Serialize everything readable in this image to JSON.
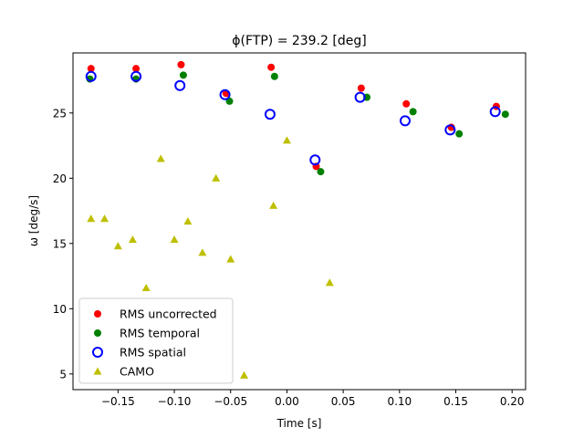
{
  "chart_data": {
    "type": "scatter",
    "title": "ϕ(FTP) = 239.2 [deg]",
    "xlabel": "Time [s]",
    "ylabel": "ω [deg/s]",
    "xlim": [
      -0.19,
      0.212
    ],
    "ylim": [
      3.8,
      29.6
    ],
    "xticks": [
      -0.15,
      -0.1,
      -0.05,
      0.0,
      0.05,
      0.1,
      0.15,
      0.2
    ],
    "xtick_labels": [
      "−0.15",
      "−0.10",
      "−0.05",
      "0.00",
      "0.05",
      "0.10",
      "0.15",
      "0.20"
    ],
    "yticks": [
      5,
      10,
      15,
      20,
      25
    ],
    "ytick_labels": [
      "5",
      "10",
      "15",
      "20",
      "25"
    ],
    "grid": false,
    "legend_position": "lower-left",
    "series": [
      {
        "name": "RMS uncorrected",
        "marker": "filled-circle",
        "color": "#ff0000",
        "points": [
          {
            "x": -0.174,
            "y": 28.4
          },
          {
            "x": -0.134,
            "y": 28.4
          },
          {
            "x": -0.094,
            "y": 28.7
          },
          {
            "x": -0.054,
            "y": 26.5
          },
          {
            "x": -0.014,
            "y": 28.5
          },
          {
            "x": 0.026,
            "y": 20.9
          },
          {
            "x": 0.066,
            "y": 26.9
          },
          {
            "x": 0.106,
            "y": 25.7
          },
          {
            "x": 0.146,
            "y": 23.9
          },
          {
            "x": 0.186,
            "y": 25.5
          }
        ]
      },
      {
        "name": "RMS temporal",
        "marker": "filled-circle",
        "color": "#008000",
        "points": [
          {
            "x": -0.175,
            "y": 27.6
          },
          {
            "x": -0.134,
            "y": 27.6
          },
          {
            "x": -0.092,
            "y": 27.9
          },
          {
            "x": -0.051,
            "y": 25.9
          },
          {
            "x": -0.011,
            "y": 27.8
          },
          {
            "x": 0.03,
            "y": 20.5
          },
          {
            "x": 0.071,
            "y": 26.2
          },
          {
            "x": 0.112,
            "y": 25.1
          },
          {
            "x": 0.153,
            "y": 23.4
          },
          {
            "x": 0.194,
            "y": 24.9
          }
        ]
      },
      {
        "name": "RMS spatial",
        "marker": "open-circle",
        "color": "#0000ff",
        "points": [
          {
            "x": -0.174,
            "y": 27.8
          },
          {
            "x": -0.134,
            "y": 27.8
          },
          {
            "x": -0.095,
            "y": 27.1
          },
          {
            "x": -0.055,
            "y": 26.4
          },
          {
            "x": -0.015,
            "y": 24.9
          },
          {
            "x": 0.025,
            "y": 21.4
          },
          {
            "x": 0.065,
            "y": 26.2
          },
          {
            "x": 0.105,
            "y": 24.4
          },
          {
            "x": 0.145,
            "y": 23.7
          },
          {
            "x": 0.185,
            "y": 25.1
          }
        ]
      },
      {
        "name": "CAMO",
        "marker": "triangle",
        "color": "#bfbf00",
        "points": [
          {
            "x": -0.174,
            "y": 16.9
          },
          {
            "x": -0.162,
            "y": 16.9
          },
          {
            "x": -0.15,
            "y": 14.8
          },
          {
            "x": -0.137,
            "y": 15.3
          },
          {
            "x": -0.125,
            "y": 11.6
          },
          {
            "x": -0.112,
            "y": 21.5
          },
          {
            "x": -0.1,
            "y": 15.3
          },
          {
            "x": -0.088,
            "y": 16.7
          },
          {
            "x": -0.075,
            "y": 14.3
          },
          {
            "x": -0.063,
            "y": 20.0
          },
          {
            "x": -0.05,
            "y": 13.8
          },
          {
            "x": -0.038,
            "y": 4.9
          },
          {
            "x": -0.012,
            "y": 17.9
          },
          {
            "x": 0.0,
            "y": 22.9
          },
          {
            "x": 0.038,
            "y": 12.0
          }
        ]
      }
    ]
  }
}
